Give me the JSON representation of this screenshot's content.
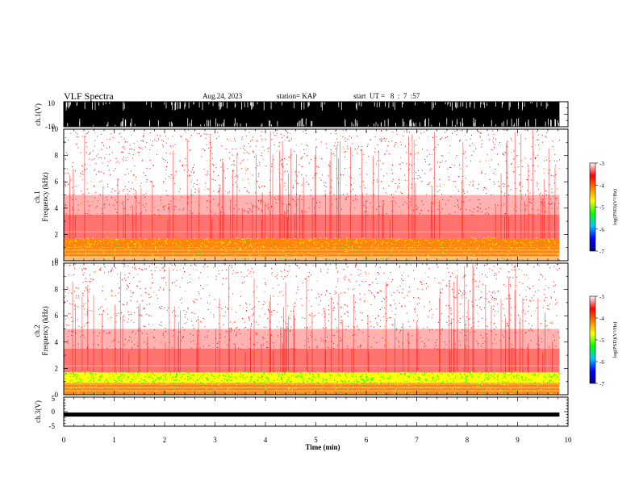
{
  "header": {
    "title": "VLF Spectra",
    "date": "Aug.24, 2023",
    "station": "station= KAP",
    "start": "start  UT =   8  :  7  :57"
  },
  "chart_data": [
    {
      "type": "line",
      "name": "ch1-waveform",
      "ylabel": "ch.1(V)",
      "ylim": [
        -10,
        10
      ],
      "yticks": [
        "10",
        "-10"
      ],
      "description_values": {
        "min": -10,
        "max": 10
      }
    },
    {
      "type": "heatmap",
      "name": "ch1-spectrogram",
      "ylabel": "ch.1\nFrequency  (kHz)",
      "ylabel_line1": "ch.1",
      "ylabel_line2": "Frequency  (kHz)",
      "ylim": [
        0,
        10
      ],
      "yticks": [
        "0",
        "2",
        "4",
        "6",
        "8",
        "10"
      ],
      "xlim": [
        0,
        10
      ],
      "colorbar": {
        "label": "log(PSD)(V²/Hz)",
        "range": [
          -7,
          -3
        ],
        "ticks": [
          "-3",
          "-4",
          "-5",
          "-6",
          "-7"
        ],
        "colors": [
          "#000080",
          "#0000ff",
          "#00c8ff",
          "#00ff00",
          "#ffff00",
          "#ff8000",
          "#ff0000",
          "#ffffff"
        ]
      },
      "bands": [
        {
          "from": 0.0,
          "to": 0.3,
          "level": -3.9
        },
        {
          "from": 0.3,
          "to": 1.0,
          "level": -4.0
        },
        {
          "from": 1.0,
          "to": 1.7,
          "level": -4.2
        },
        {
          "from": 1.7,
          "to": 3.5,
          "level": -3.7
        },
        {
          "from": 3.5,
          "to": 5.0,
          "level": -3.45
        },
        {
          "from": 5.0,
          "to": 10.0,
          "level": -3.25
        }
      ]
    },
    {
      "type": "heatmap",
      "name": "ch2-spectrogram",
      "ylabel": "ch.2\nFrequency  (kHz)",
      "ylabel_line1": "ch.2",
      "ylabel_line2": "Frequency  (kHz)",
      "ylim": [
        0,
        10
      ],
      "yticks": [
        "0",
        "2",
        "4",
        "6",
        "8",
        "10"
      ],
      "xlim": [
        0,
        10
      ],
      "colorbar": {
        "label": "log(PSD)(V²/Hz)",
        "range": [
          -7,
          -3
        ],
        "ticks": [
          "-3",
          "-4",
          "-5",
          "-6",
          "-7"
        ],
        "colors": [
          "#000080",
          "#0000ff",
          "#00c8ff",
          "#00ff00",
          "#ffff00",
          "#ff8000",
          "#ff0000",
          "#ffffff"
        ]
      },
      "bands": [
        {
          "from": 0.0,
          "to": 0.5,
          "level": -4.3
        },
        {
          "from": 0.5,
          "to": 0.9,
          "level": -4.0
        },
        {
          "from": 0.9,
          "to": 1.7,
          "level": -4.6
        },
        {
          "from": 1.7,
          "to": 3.5,
          "level": -3.7
        },
        {
          "from": 3.5,
          "to": 5.0,
          "level": -3.45
        },
        {
          "from": 5.0,
          "to": 10.0,
          "level": -3.25
        }
      ]
    },
    {
      "type": "line",
      "name": "ch3-waveform",
      "ylabel": "ch.3(V)",
      "ylim": [
        -5,
        5
      ],
      "yticks": [
        "5",
        "0",
        "-5"
      ],
      "level": -1,
      "xlabel": "Time  (min)",
      "xlim": [
        0,
        10
      ],
      "xticks": [
        "0",
        "1",
        "2",
        "3",
        "4",
        "5",
        "6",
        "7",
        "8",
        "9",
        "10"
      ]
    }
  ],
  "data_extent_minutes": 9.83
}
